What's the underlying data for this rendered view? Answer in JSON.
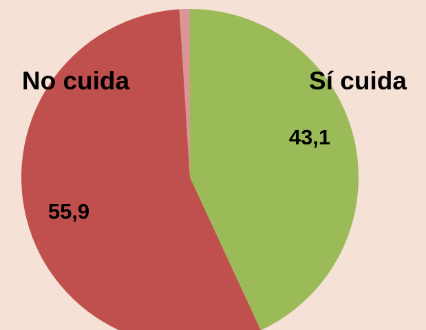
{
  "chart_data": {
    "type": "pie",
    "categories": [
      "Sí cuida",
      "No cuida",
      null
    ],
    "values": [
      43.1,
      55.9,
      1.0
    ],
    "value_labels": [
      "43,1",
      "55,9",
      null
    ],
    "colors": [
      "#9bbb59",
      "#c0504d",
      "#d99694"
    ],
    "start_angle": 0,
    "direction": "clockwise"
  }
}
